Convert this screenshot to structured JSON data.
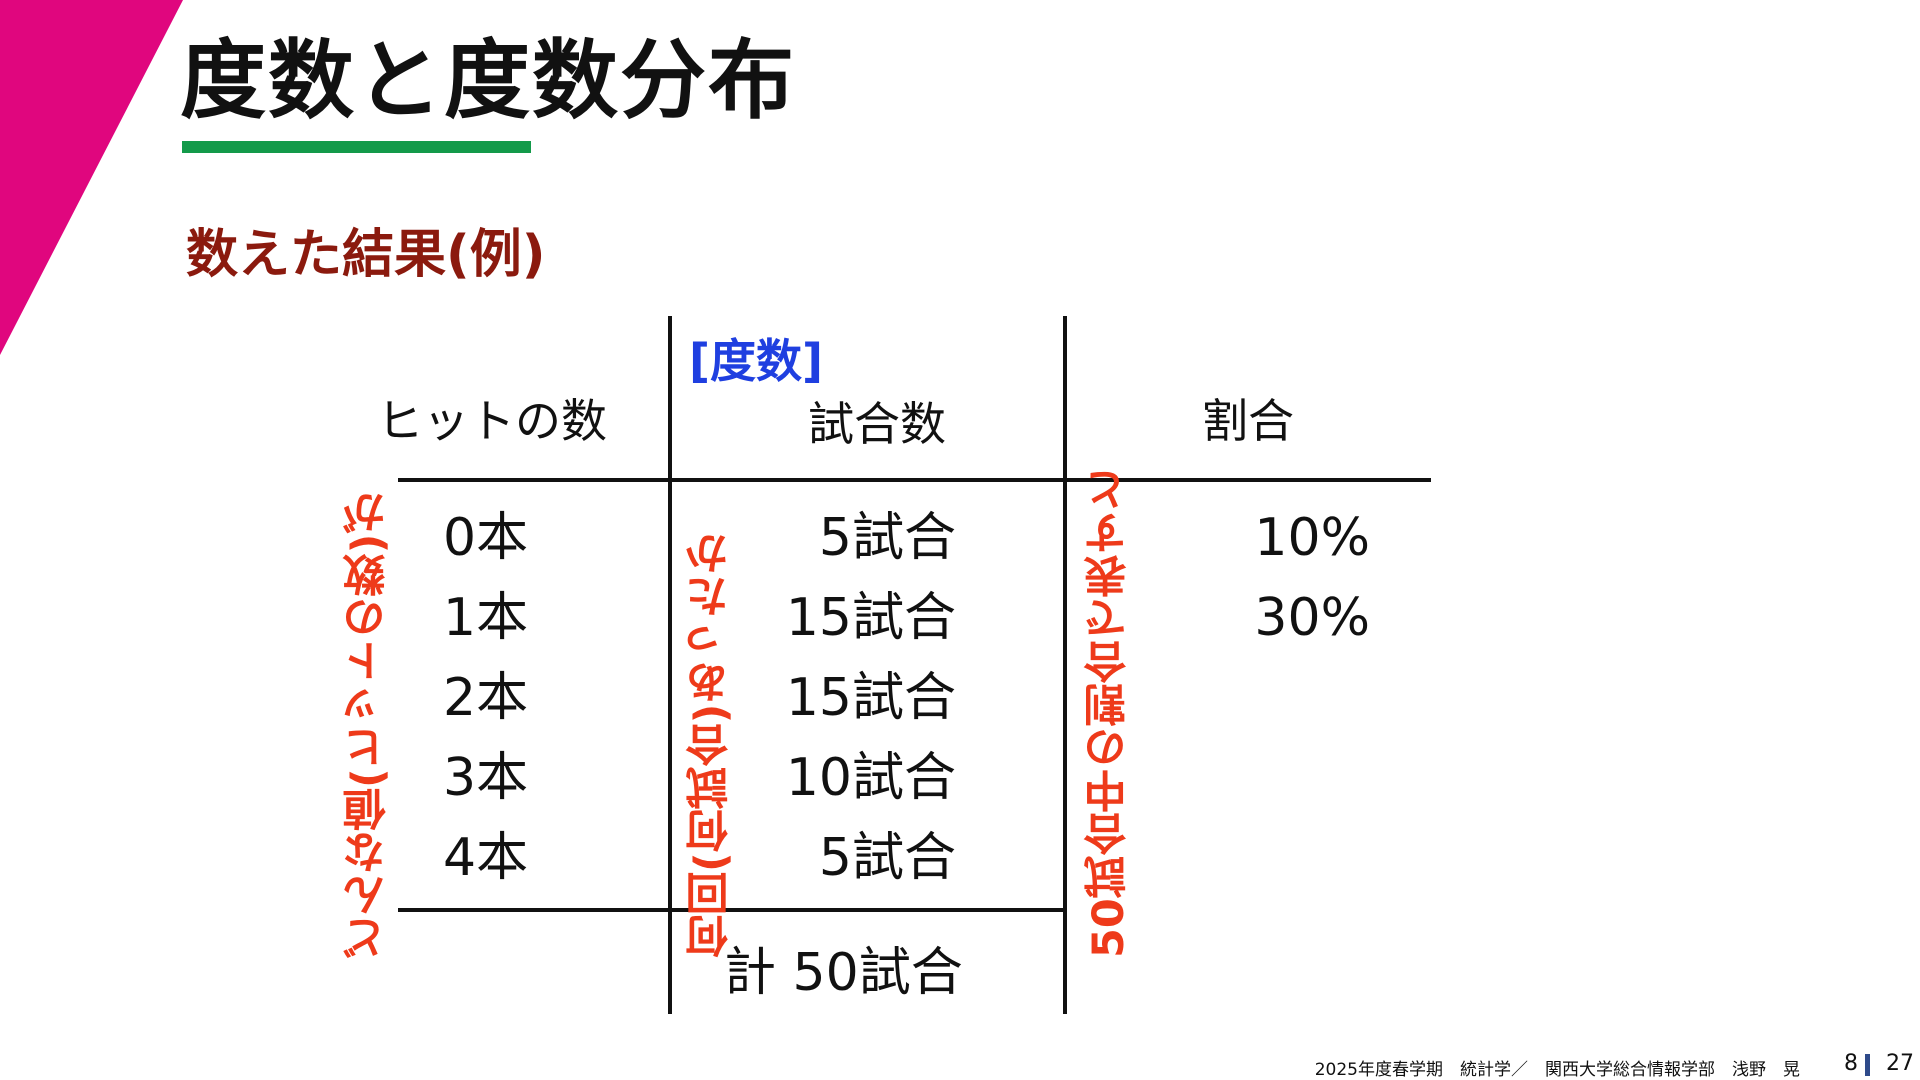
{
  "title": "度数と度数分布",
  "section_heading": "数えた結果(例)",
  "table": {
    "headers": {
      "hits": "ヒットの数",
      "games_tag": "[度数]",
      "games": "試合数",
      "ratio": "割合"
    },
    "hits": [
      "0本",
      "1本",
      "2本",
      "3本",
      "4本"
    ],
    "games": [
      "5試合",
      "15試合",
      "15試合",
      "10試合",
      "5試合"
    ],
    "ratios": [
      "10%",
      "30%"
    ],
    "total": "計 50試合"
  },
  "annotations": {
    "value_note": "どんな値(ヒットの数)が",
    "count_note": "何回(何試合)あったか",
    "ratio_note": "50試合中の割合で表すと"
  },
  "footer": {
    "credit": "2025年度春学期　統計学／　関西大学総合情報学部　浅野　晃",
    "page": "8",
    "total_pages": "27"
  },
  "colors": {
    "accent_triangle": "#e0067e",
    "underline": "#139a4a",
    "section_heading": "#8b1a0e",
    "frequency_tag": "#1f3fe0",
    "annotation": "#ee3a1a",
    "page_bar": "#2e4a8a"
  }
}
